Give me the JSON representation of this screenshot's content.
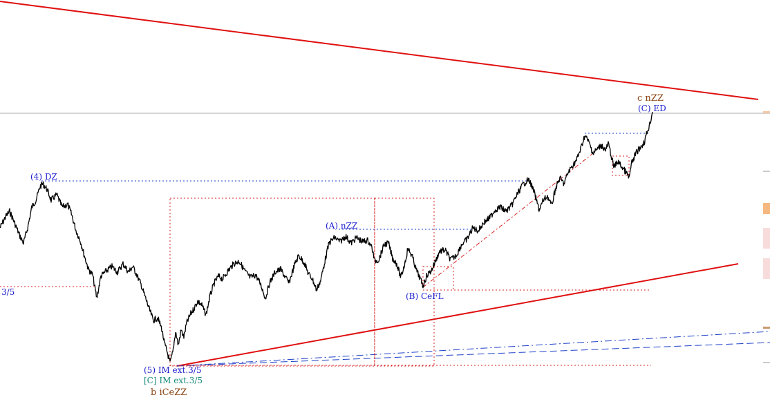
{
  "chart_data": {
    "type": "line",
    "title": "",
    "xlabel": "",
    "ylabel": "",
    "grid": false,
    "colors": {
      "price": "#000000",
      "wave_label_blue": "#1a1acc",
      "wave_label_teal": "#168a7a",
      "wave_label_brown": "#8b4513",
      "trendline": "#e01010",
      "channel_dashed_red": "#d82020",
      "channel_dashed_blue": "#1d3fc8",
      "current_price_line": "#a0a0a0",
      "marker_orange": "#f5b880",
      "marker_pink": "#f8dcdc"
    },
    "price_path": [
      [
        0,
        330
      ],
      [
        8,
        314
      ],
      [
        14,
        306
      ],
      [
        20,
        320
      ],
      [
        28,
        340
      ],
      [
        34,
        352
      ],
      [
        40,
        330
      ],
      [
        46,
        300
      ],
      [
        52,
        290
      ],
      [
        58,
        270
      ],
      [
        62,
        266
      ],
      [
        68,
        274
      ],
      [
        74,
        290
      ],
      [
        82,
        282
      ],
      [
        90,
        300
      ],
      [
        98,
        296
      ],
      [
        104,
        312
      ],
      [
        110,
        334
      ],
      [
        116,
        348
      ],
      [
        122,
        370
      ],
      [
        128,
        390
      ],
      [
        134,
        398
      ],
      [
        140,
        432
      ],
      [
        146,
        400
      ],
      [
        154,
        392
      ],
      [
        162,
        386
      ],
      [
        170,
        394
      ],
      [
        178,
        382
      ],
      [
        186,
        394
      ],
      [
        192,
        386
      ],
      [
        198,
        398
      ],
      [
        204,
        412
      ],
      [
        210,
        430
      ],
      [
        216,
        448
      ],
      [
        222,
        464
      ],
      [
        228,
        460
      ],
      [
        234,
        476
      ],
      [
        238,
        498
      ],
      [
        242,
        510
      ],
      [
        246,
        526
      ],
      [
        250,
        510
      ],
      [
        254,
        480
      ],
      [
        258,
        500
      ],
      [
        262,
        478
      ],
      [
        266,
        488
      ],
      [
        270,
        468
      ],
      [
        276,
        454
      ],
      [
        280,
        448
      ],
      [
        286,
        436
      ],
      [
        292,
        442
      ],
      [
        298,
        456
      ],
      [
        304,
        428
      ],
      [
        310,
        410
      ],
      [
        316,
        400
      ],
      [
        322,
        404
      ],
      [
        330,
        392
      ],
      [
        338,
        382
      ],
      [
        346,
        378
      ],
      [
        354,
        392
      ],
      [
        362,
        402
      ],
      [
        370,
        398
      ],
      [
        378,
        414
      ],
      [
        384,
        432
      ],
      [
        390,
        410
      ],
      [
        398,
        394
      ],
      [
        406,
        390
      ],
      [
        412,
        400
      ],
      [
        418,
        410
      ],
      [
        426,
        384
      ],
      [
        432,
        370
      ],
      [
        440,
        380
      ],
      [
        446,
        396
      ],
      [
        452,
        404
      ],
      [
        458,
        420
      ],
      [
        464,
        406
      ],
      [
        470,
        378
      ],
      [
        476,
        352
      ],
      [
        484,
        344
      ],
      [
        492,
        350
      ],
      [
        500,
        342
      ],
      [
        508,
        352
      ],
      [
        516,
        344
      ],
      [
        524,
        350
      ],
      [
        532,
        348
      ],
      [
        538,
        358
      ],
      [
        542,
        378
      ],
      [
        548,
        376
      ],
      [
        556,
        354
      ],
      [
        562,
        352
      ],
      [
        568,
        374
      ],
      [
        574,
        382
      ],
      [
        580,
        402
      ],
      [
        586,
        380
      ],
      [
        590,
        360
      ],
      [
        596,
        370
      ],
      [
        602,
        390
      ],
      [
        608,
        404
      ],
      [
        612,
        414
      ],
      [
        618,
        398
      ],
      [
        624,
        392
      ],
      [
        630,
        378
      ],
      [
        636,
        364
      ],
      [
        644,
        362
      ],
      [
        652,
        376
      ],
      [
        660,
        370
      ],
      [
        668,
        354
      ],
      [
        676,
        346
      ],
      [
        684,
        330
      ],
      [
        692,
        334
      ],
      [
        700,
        322
      ],
      [
        708,
        316
      ],
      [
        716,
        304
      ],
      [
        724,
        300
      ],
      [
        732,
        306
      ],
      [
        740,
        298
      ],
      [
        748,
        282
      ],
      [
        756,
        268
      ],
      [
        764,
        260
      ],
      [
        768,
        266
      ],
      [
        772,
        276
      ],
      [
        776,
        290
      ],
      [
        780,
        304
      ],
      [
        786,
        290
      ],
      [
        792,
        284
      ],
      [
        798,
        298
      ],
      [
        804,
        272
      ],
      [
        810,
        258
      ],
      [
        816,
        266
      ],
      [
        822,
        250
      ],
      [
        828,
        240
      ],
      [
        834,
        232
      ],
      [
        840,
        216
      ],
      [
        846,
        196
      ],
      [
        852,
        206
      ],
      [
        858,
        222
      ],
      [
        864,
        216
      ],
      [
        870,
        210
      ],
      [
        876,
        218
      ],
      [
        880,
        208
      ],
      [
        884,
        224
      ],
      [
        888,
        242
      ],
      [
        894,
        234
      ],
      [
        900,
        242
      ],
      [
        906,
        250
      ],
      [
        910,
        258
      ],
      [
        914,
        236
      ],
      [
        920,
        222
      ],
      [
        926,
        214
      ],
      [
        932,
        206
      ],
      [
        936,
        192
      ],
      [
        940,
        180
      ],
      [
        944,
        162
      ]
    ],
    "annotations": [
      {
        "id": "c-nzz",
        "text": "c nZZ",
        "color": "brown"
      },
      {
        "id": "c-ed",
        "text": "(C) ED",
        "color": "blue"
      },
      {
        "id": "four-dz",
        "text": "(4) DZ",
        "color": "blue"
      },
      {
        "id": "a-nzz",
        "text": "(A) nZZ",
        "color": "blue"
      },
      {
        "id": "b-cefl",
        "text": "(B) CeFL",
        "color": "blue"
      },
      {
        "id": "left-35",
        "text": "3/5",
        "color": "blue"
      },
      {
        "id": "five-im",
        "text": "(5) IM ext.3/5",
        "color": "blue"
      },
      {
        "id": "c-im",
        "text": "[C] IM ext.3/5",
        "color": "teal"
      },
      {
        "id": "b-icezz",
        "text": "b iCeZZ",
        "color": "brown"
      }
    ]
  }
}
